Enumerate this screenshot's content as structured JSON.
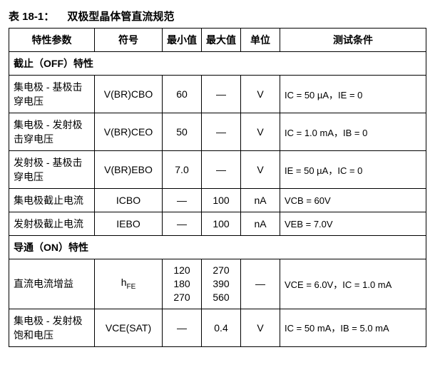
{
  "title": {
    "number": "表 18-1：",
    "text": "双极型晶体管直流规范"
  },
  "columns": {
    "param": "特性参数",
    "symbol": "符号",
    "min": "最小值",
    "max": "最大值",
    "unit": "单位",
    "cond": "测试条件"
  },
  "sections": {
    "off": "截止（OFF）特性",
    "on": "导通（ON）特性"
  },
  "rows": {
    "r1": {
      "param": "集电极 - 基极击穿电压",
      "sym": "V(BR)CBO",
      "min": "60",
      "max": "—",
      "unit": "V",
      "cond": "IC = 50 µA，IE = 0"
    },
    "r2": {
      "param": "集电极 - 发射极击穿电压",
      "sym": "V(BR)CEO",
      "min": "50",
      "max": "—",
      "unit": "V",
      "cond": "IC = 1.0 mA，IB = 0"
    },
    "r3": {
      "param": "发射极 - 基极击穿电压",
      "sym": "V(BR)EBO",
      "min": "7.0",
      "max": "—",
      "unit": "V",
      "cond": "IE = 50 µA，IC = 0"
    },
    "r4": {
      "param": "集电极截止电流",
      "sym": "ICBO",
      "min": "—",
      "max": "100",
      "unit": "nA",
      "cond": "VCB = 60V"
    },
    "r5": {
      "param": "发射极截止电流",
      "sym": "IEBO",
      "min": "—",
      "max": "100",
      "unit": "nA",
      "cond": "VEB = 7.0V"
    },
    "r6": {
      "param": "直流电流增益",
      "sym": "hFE",
      "min_1": "120",
      "min_2": "180",
      "min_3": "270",
      "max_1": "270",
      "max_2": "390",
      "max_3": "560",
      "unit": "—",
      "cond": "VCE = 6.0V，IC = 1.0 mA"
    },
    "r7": {
      "param": "集电极 - 发射极饱和电压",
      "sym": "VCE(SAT)",
      "min": "—",
      "max": "0.4",
      "unit": "V",
      "cond": "IC = 50 mA，IB = 5.0 mA"
    }
  },
  "style": {
    "border_color": "#000000",
    "background_color": "#ffffff",
    "text_color": "#000000",
    "font_size_body": 14,
    "font_size_cond": 13
  }
}
